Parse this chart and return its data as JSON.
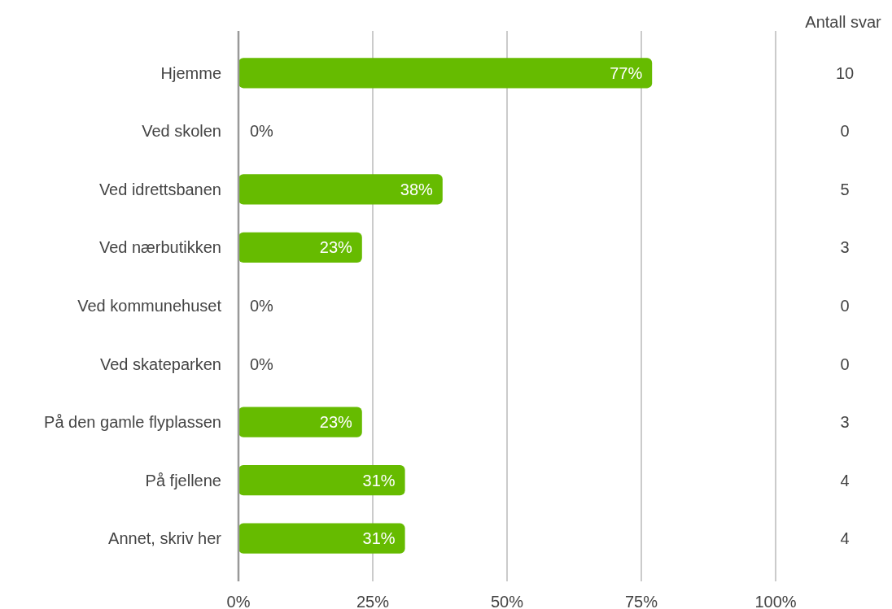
{
  "chart_data": {
    "type": "bar",
    "orientation": "horizontal",
    "categories": [
      "Hjemme",
      "Ved skolen",
      "Ved idrettsbanen",
      "Ved nærbutikken",
      "Ved kommunehuset",
      "Ved skateparken",
      "På den gamle flyplassen",
      "På fjellene",
      "Annet, skriv her"
    ],
    "values": [
      77,
      0,
      38,
      23,
      0,
      0,
      23,
      31,
      31
    ],
    "value_labels": [
      "77%",
      "0%",
      "38%",
      "23%",
      "0%",
      "0%",
      "23%",
      "31%",
      "31%"
    ],
    "color": "#66bb00",
    "xlim": [
      0,
      100
    ],
    "xticks": [
      {
        "value": 0,
        "label": "0%"
      },
      {
        "value": 25,
        "label": "25%"
      },
      {
        "value": 50,
        "label": "50%"
      },
      {
        "value": 75,
        "label": "75%"
      },
      {
        "value": 100,
        "label": "100%"
      }
    ],
    "grid": "x",
    "annotations": [
      "Antall svar",
      "10",
      "0",
      "5",
      "3",
      "0",
      "0",
      "3",
      "4",
      "4"
    ]
  }
}
